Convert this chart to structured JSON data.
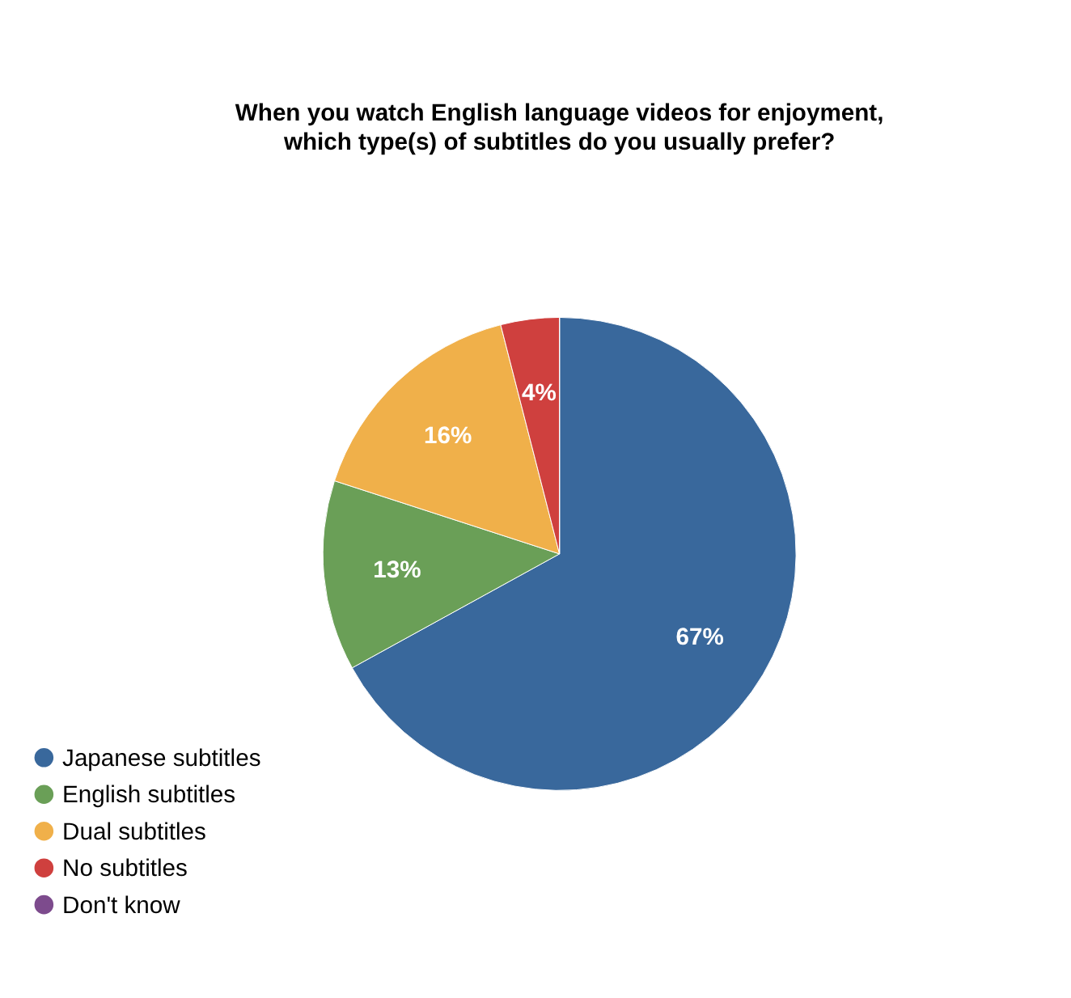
{
  "chart_data": {
    "type": "pie",
    "title": "When you watch English language videos for enjoyment, which type(s) of subtitles do you usually prefer?",
    "categories": [
      "Japanese subtitles",
      "English subtitles",
      "Dual subtitles",
      "No subtitles",
      "Don't know"
    ],
    "values": [
      67,
      13,
      16,
      4,
      0
    ],
    "value_labels": [
      "67%",
      "13%",
      "16%",
      "4%",
      null
    ],
    "colors": [
      "#39689c",
      "#6a9f57",
      "#f0b04a",
      "#cf403e",
      "#7d4b8d"
    ],
    "legend": "bottom left"
  }
}
